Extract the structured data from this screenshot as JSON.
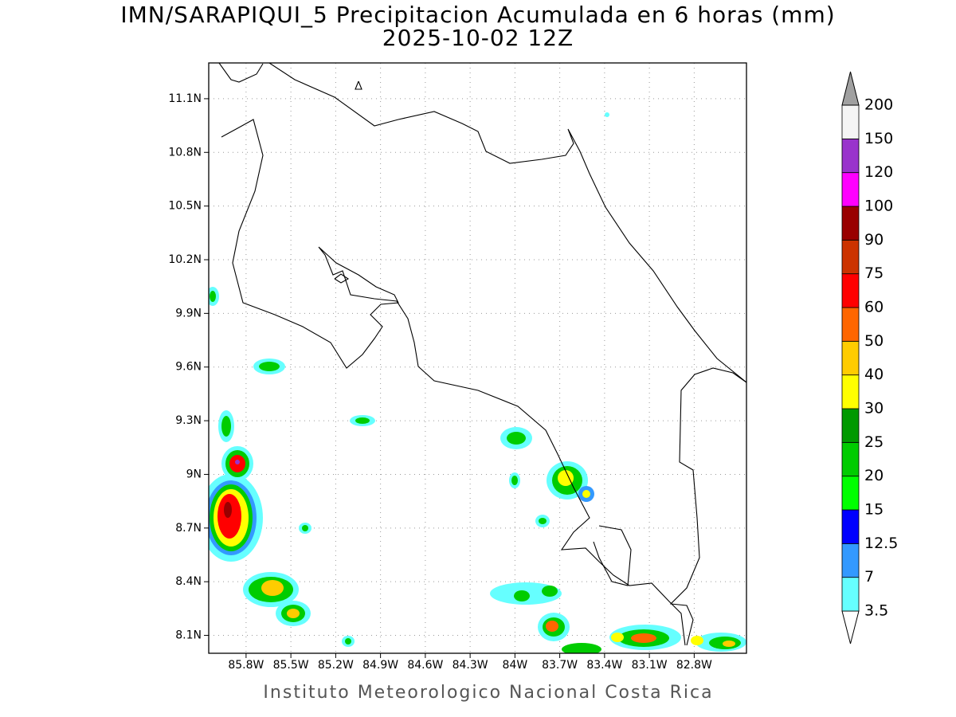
{
  "map": {
    "title": "IMN/SARAPIQUI_5 Precipitacion Acumulada en 6 horas (mm)",
    "subtitle": "2025-10-02 12Z",
    "footer": "Instituto Meteorologico Nacional Costa Rica",
    "xlim": [
      -86.05,
      -82.45
    ],
    "ylim": [
      8.0,
      11.3
    ],
    "grid": true,
    "xticks": [
      {
        "value": -85.8,
        "label": "85.8W"
      },
      {
        "value": -85.5,
        "label": "85.5W"
      },
      {
        "value": -85.2,
        "label": "85.2W"
      },
      {
        "value": -84.9,
        "label": "84.9W"
      },
      {
        "value": -84.6,
        "label": "84.6W"
      },
      {
        "value": -84.3,
        "label": "84.3W"
      },
      {
        "value": -84.0,
        "label": "84W"
      },
      {
        "value": -83.7,
        "label": "83.7W"
      },
      {
        "value": -83.4,
        "label": "83.4W"
      },
      {
        "value": -83.1,
        "label": "83.1W"
      },
      {
        "value": -82.8,
        "label": "82.8W"
      }
    ],
    "yticks": [
      {
        "value": 8.1,
        "label": "8.1N"
      },
      {
        "value": 8.4,
        "label": "8.4N"
      },
      {
        "value": 8.7,
        "label": "8.7N"
      },
      {
        "value": 9.0,
        "label": "9N"
      },
      {
        "value": 9.3,
        "label": "9.3N"
      },
      {
        "value": 9.6,
        "label": "9.6N"
      },
      {
        "value": 9.9,
        "label": "9.9N"
      },
      {
        "value": 10.2,
        "label": "10.2N"
      },
      {
        "value": 10.5,
        "label": "10.5N"
      },
      {
        "value": 10.8,
        "label": "10.8N"
      },
      {
        "value": 11.1,
        "label": "11.1N"
      }
    ],
    "colorbar": {
      "levels": [
        3.5,
        7,
        12.5,
        15,
        20,
        25,
        30,
        40,
        50,
        60,
        75,
        90,
        100,
        120,
        150,
        200
      ],
      "colors": [
        "#ffffff",
        "#66ffff",
        "#3399ff",
        "#0000ff",
        "#00ff00",
        "#00cc00",
        "#009900",
        "#ffff00",
        "#ffcc00",
        "#ff6600",
        "#ff0000",
        "#cc3300",
        "#990000",
        "#ff00ff",
        "#9933cc",
        "#f5f5f5",
        "#a0a0a0"
      ]
    }
  }
}
